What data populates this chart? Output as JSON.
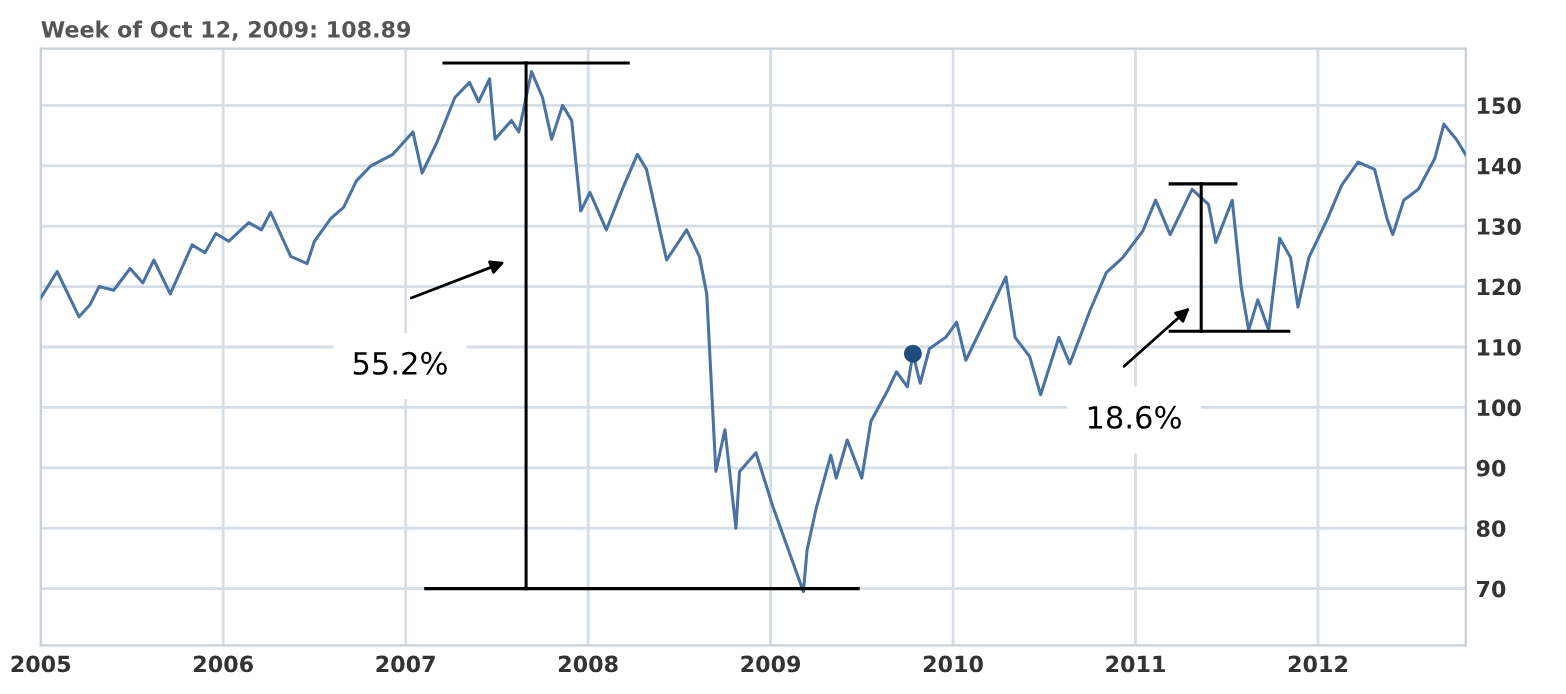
{
  "chart_data": {
    "type": "line",
    "title": "Week of Oct 12, 2009: 108.89",
    "xlim": [
      2005,
      2012.81
    ],
    "ylim": [
      60.6,
      159.4
    ],
    "xticks": [
      2005,
      2006,
      2007,
      2008,
      2009,
      2010,
      2011,
      2012
    ],
    "yticks": [
      70,
      80,
      90,
      100,
      110,
      120,
      130,
      140,
      150
    ],
    "grid": true,
    "legend": false,
    "series": [
      {
        "color": "#4a73a3",
        "marker": "none",
        "line_style": "solid",
        "x": [
          2005.0,
          2005.09,
          2005.21,
          2005.27,
          2005.32,
          2005.4,
          2005.49,
          2005.56,
          2005.62,
          2005.71,
          2005.83,
          2005.9,
          2005.96,
          2006.03,
          2006.14,
          2006.21,
          2006.26,
          2006.37,
          2006.46,
          2006.5,
          2006.59,
          2006.66,
          2006.73,
          2006.81,
          2006.93,
          2007.04,
          2007.09,
          2007.17,
          2007.27,
          2007.35,
          2007.4,
          2007.46,
          2007.49,
          2007.58,
          2007.62,
          2007.69,
          2007.75,
          2007.8,
          2007.86,
          2007.91,
          2007.96,
          2008.01,
          2008.1,
          2008.19,
          2008.27,
          2008.32,
          2008.43,
          2008.54,
          2008.61,
          2008.65,
          2008.7,
          2008.75,
          2008.81,
          2008.83,
          2008.92,
          2009.01,
          2009.18,
          2009.2,
          2009.25,
          2009.33,
          2009.36,
          2009.42,
          2009.5,
          2009.55,
          2009.64,
          2009.69,
          2009.75,
          2009.78,
          2009.82,
          2009.87,
          2009.96,
          2010.02,
          2010.07,
          2010.16,
          2010.29,
          2010.34,
          2010.42,
          2010.48,
          2010.58,
          2010.64,
          2010.75,
          2010.84,
          2010.93,
          2011.04,
          2011.11,
          2011.19,
          2011.31,
          2011.4,
          2011.44,
          2011.53,
          2011.58,
          2011.62,
          2011.67,
          2011.73,
          2011.79,
          2011.85,
          2011.89,
          2011.95,
          2012.05,
          2012.13,
          2012.22,
          2012.31,
          2012.38,
          2012.41,
          2012.47,
          2012.55,
          2012.64,
          2012.69,
          2012.76,
          2012.81
        ],
        "values": [
          118.1,
          122.5,
          115,
          117,
          120,
          119.4,
          123,
          120.6,
          124.4,
          118.8,
          126.9,
          125.6,
          128.8,
          127.5,
          130.6,
          129.4,
          132.3,
          125,
          123.8,
          127.5,
          131.3,
          133.1,
          137.5,
          140,
          141.9,
          145.6,
          138.8,
          143.8,
          151.3,
          153.8,
          150.6,
          154.4,
          144.4,
          147.5,
          145.6,
          155.6,
          151.3,
          144.4,
          150,
          147.5,
          132.5,
          135.6,
          129.4,
          136.3,
          141.9,
          139.4,
          124.4,
          129.4,
          125,
          118.8,
          89.4,
          96.3,
          80,
          89.4,
          92.5,
          83.8,
          69.5,
          76.4,
          83.3,
          92.1,
          88.3,
          94.6,
          88.3,
          97.7,
          102.7,
          105.9,
          103.4,
          108.89,
          104,
          109.7,
          111.6,
          114.1,
          107.8,
          113.4,
          121.6,
          111.6,
          108.4,
          102.1,
          111.6,
          107.2,
          116,
          122.3,
          124.8,
          129.2,
          134.3,
          128.6,
          136.1,
          133.6,
          127.3,
          134.3,
          119.8,
          112.8,
          117.8,
          112.8,
          128,
          124.8,
          116.6,
          124.8,
          131.1,
          136.8,
          140.6,
          139.4,
          131.1,
          128.6,
          134.3,
          136.1,
          141.2,
          146.9,
          144.3,
          141.8
        ]
      },
      {
        "type": "scatter",
        "color": "#1f4e7e",
        "marker": "circle",
        "x": [
          2009.78
        ],
        "values": [
          108.89
        ]
      },
      {
        "type": "line",
        "color": "#000000",
        "marker": "none",
        "line_style": "solid",
        "x": [
          2007.21,
          2008.22
        ],
        "values": [
          157,
          157
        ]
      },
      {
        "type": "line",
        "color": "#000000",
        "marker": "none",
        "line_style": "solid",
        "x": [
          2007.66,
          2007.66
        ],
        "values": [
          157,
          70
        ]
      },
      {
        "type": "line",
        "color": "#000000",
        "marker": "none",
        "line_style": "solid",
        "x": [
          2007.11,
          2009.48
        ],
        "values": [
          70,
          70
        ]
      },
      {
        "type": "line",
        "color": "#000000",
        "marker": "none",
        "line_style": "solid",
        "x": [
          2011.19,
          2011.55
        ],
        "values": [
          137,
          137
        ]
      },
      {
        "type": "line",
        "color": "#000000",
        "marker": "none",
        "line_style": "solid",
        "x": [
          2011.36,
          2011.36
        ],
        "values": [
          137,
          112.6
        ]
      },
      {
        "type": "line",
        "color": "#000000",
        "marker": "none",
        "line_style": "solid",
        "x": [
          2011.19,
          2011.84
        ],
        "values": [
          112.6,
          112.6
        ]
      }
    ],
    "annotations": [
      "55.2%",
      "18.6%"
    ]
  }
}
